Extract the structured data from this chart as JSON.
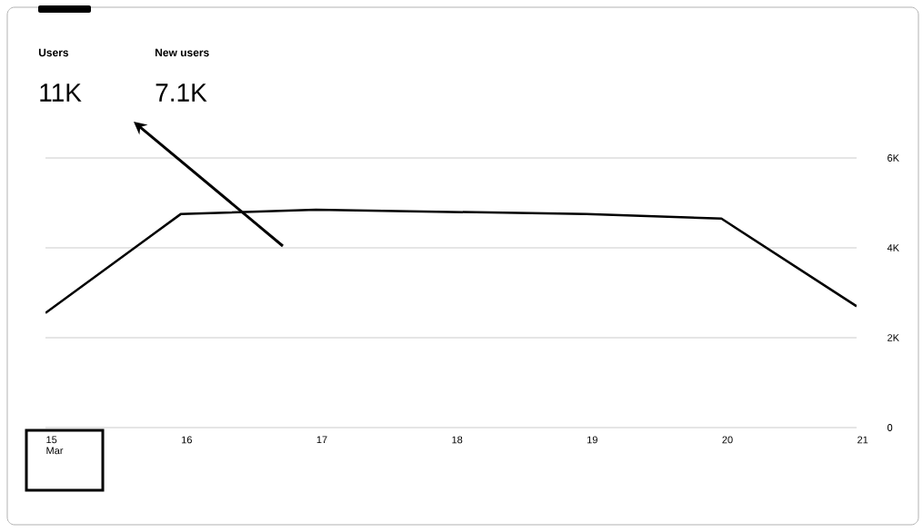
{
  "chart_data": {
    "type": "line",
    "categories": [
      "15 Mar",
      "16",
      "17",
      "18",
      "19",
      "20",
      "21"
    ],
    "series": [
      {
        "color": "#000000",
        "values": [
          2550,
          4750,
          4850,
          4800,
          4750,
          4650,
          2700
        ]
      }
    ],
    "ylim": [
      0,
      6000
    ],
    "yticks": [
      0,
      {
        "value": 2000,
        "label": "2K"
      },
      {
        "value": 4000,
        "label": "4K"
      },
      {
        "value": 6000,
        "label": "6K"
      }
    ],
    "grid": "y",
    "marker": "none",
    "line_style": "solid",
    "annotations": [
      "Users",
      "11K",
      "New users",
      "7.1K"
    ]
  }
}
